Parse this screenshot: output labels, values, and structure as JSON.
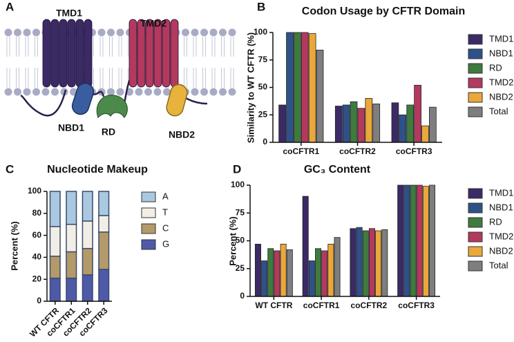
{
  "panel_labels": [
    "A",
    "B",
    "C",
    "D"
  ],
  "diagram": {
    "labels": [
      "TMD1",
      "TMD2",
      "NBD1",
      "RD",
      "NBD2"
    ]
  },
  "chart_data": [
    {
      "type": "bar",
      "title": "Codon Usage by CFTR Domain",
      "y_label": "Similarity to WT CFTR (%)",
      "categories": [
        "coCFTR1",
        "coCFTR2",
        "coCFTR3"
      ],
      "series": [
        {
          "name": "TMD1",
          "color": "#3b2a66",
          "values": [
            34,
            33,
            36
          ]
        },
        {
          "name": "NBD1",
          "color": "#2f5189",
          "values": [
            100,
            34,
            25
          ]
        },
        {
          "name": "RD",
          "color": "#3f7a3f",
          "values": [
            100,
            37,
            34
          ]
        },
        {
          "name": "TMD2",
          "color": "#b3395f",
          "values": [
            100,
            31,
            52
          ]
        },
        {
          "name": "NBD2",
          "color": "#eaa83a",
          "values": [
            99,
            40,
            15
          ]
        },
        {
          "name": "Total",
          "color": "#7e7e7e",
          "values": [
            84,
            35,
            32
          ]
        }
      ],
      "ylim": [
        0,
        100
      ],
      "yticks": [
        0,
        25,
        50,
        75,
        100
      ]
    },
    {
      "type": "stacked_bar",
      "title": "Nucleotide Makeup",
      "y_label": "Percent (%)",
      "categories": [
        "WT CFTR",
        "coCFTR1",
        "coCFTR2",
        "coCFTR3"
      ],
      "series": [
        {
          "name": "G",
          "color": "#4e5aa8",
          "values": [
            21,
            21,
            24,
            29
          ]
        },
        {
          "name": "C",
          "color": "#b39a6a",
          "values": [
            20,
            24,
            24,
            34
          ]
        },
        {
          "name": "T",
          "color": "#f3eee5",
          "values": [
            27,
            25,
            25,
            15
          ]
        },
        {
          "name": "A",
          "color": "#a9c8e1",
          "values": [
            32,
            30,
            27,
            22
          ]
        }
      ],
      "legend_order": [
        "A",
        "T",
        "C",
        "G"
      ],
      "ylim": [
        0,
        100
      ],
      "yticks": [
        0,
        20,
        40,
        60,
        80,
        100
      ]
    },
    {
      "type": "bar",
      "title": "GC₃ Content",
      "y_label": "Percent (%)",
      "categories": [
        "WT CFTR",
        "coCFTR1",
        "coCFTR2",
        "coCFTR3"
      ],
      "series": [
        {
          "name": "TMD1",
          "color": "#3b2a66",
          "values": [
            47,
            90,
            61,
            100
          ]
        },
        {
          "name": "NBD1",
          "color": "#2f5189",
          "values": [
            32,
            32,
            62,
            100
          ]
        },
        {
          "name": "RD",
          "color": "#3f7a3f",
          "values": [
            43,
            43,
            59,
            100
          ]
        },
        {
          "name": "TMD2",
          "color": "#b3395f",
          "values": [
            41,
            41,
            61,
            100
          ]
        },
        {
          "name": "NBD2",
          "color": "#eaa83a",
          "values": [
            47,
            47,
            59,
            99
          ]
        },
        {
          "name": "Total",
          "color": "#7e7e7e",
          "values": [
            42,
            53,
            60,
            100
          ]
        }
      ],
      "ylim": [
        0,
        100
      ],
      "yticks": [
        0,
        25,
        50,
        75,
        100
      ]
    }
  ]
}
